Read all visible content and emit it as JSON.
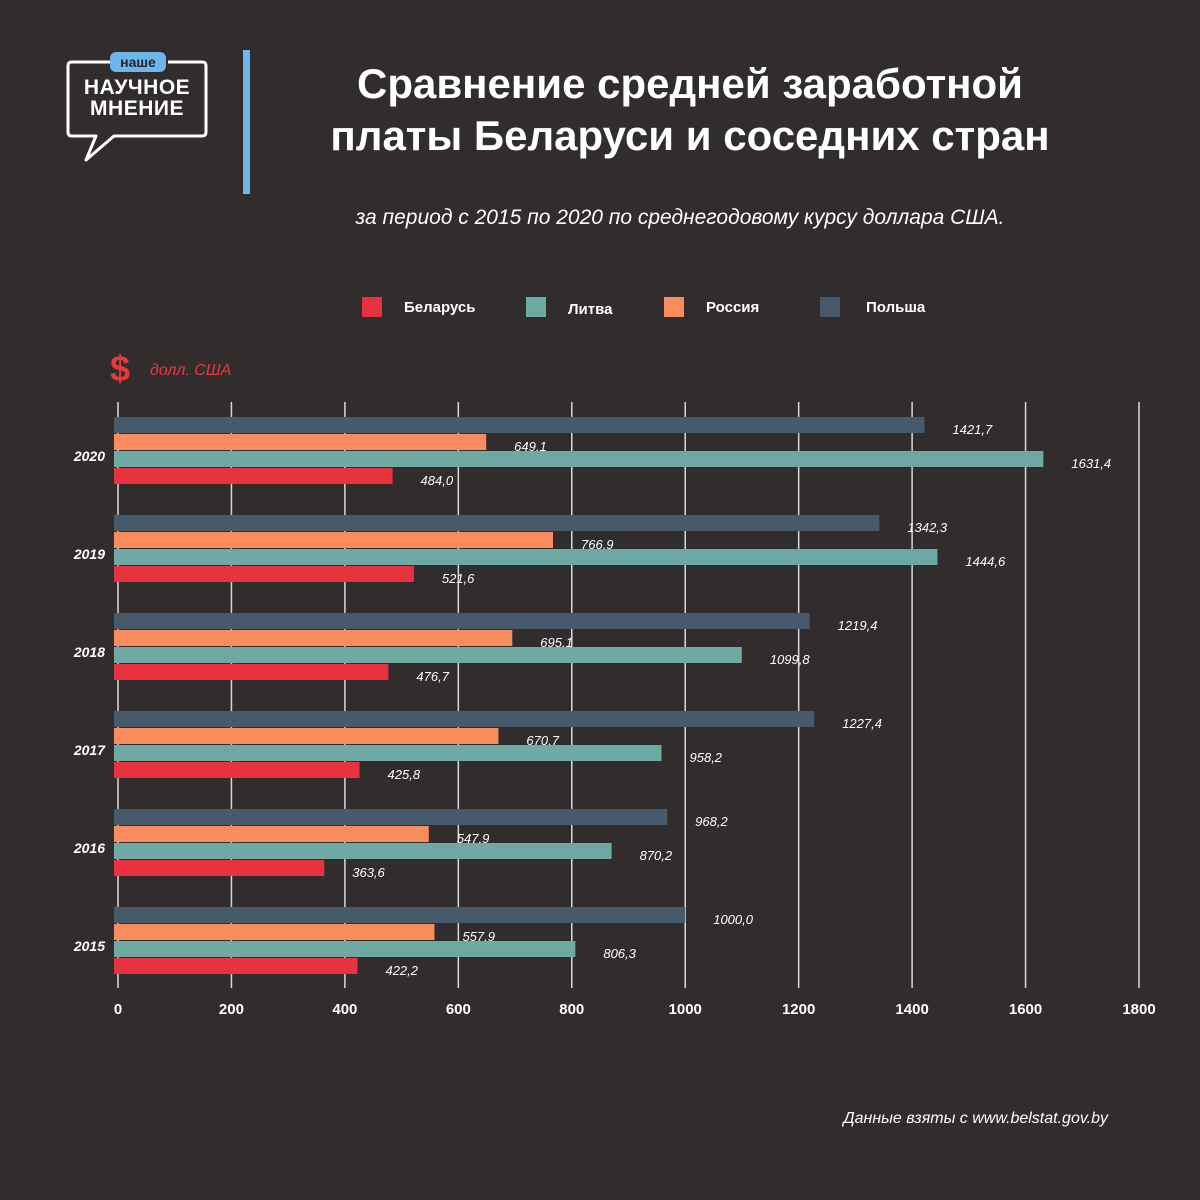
{
  "logo": {
    "badge": "наше",
    "line1": "НАУЧНОЕ",
    "line2": "МНЕНИЕ"
  },
  "title_line1": "Сравнение средней заработной",
  "title_line2": "платы Беларуси и соседних стран",
  "subtitle": "за период с 2015 по 2020 по среднегодовому курсу доллара США.",
  "unit_icon": "dollar-icon",
  "unit_symbol": "$",
  "unit_label": "долл. США",
  "source": "Данные взяты с www.belstat.gov.by",
  "colors": {
    "background": "#322d2d",
    "accent_blue": "#6cb6ec",
    "unit_red": "#e8393f"
  },
  "legend": [
    {
      "name": "Беларусь",
      "color": "#e8333f"
    },
    {
      "name": "Литва",
      "color": "#6ea9a4"
    },
    {
      "name": "Россия",
      "color": "#f98c5c"
    },
    {
      "name": "Польша",
      "color": "#465a6b"
    }
  ],
  "chart_data": {
    "type": "bar",
    "orientation": "horizontal",
    "categories": [
      "2020",
      "2019",
      "2018",
      "2017",
      "2016",
      "2015"
    ],
    "xlim": [
      0,
      1800
    ],
    "xticks": [
      "0",
      "200",
      "400",
      "600",
      "800",
      "1000",
      "1200",
      "1400",
      "1600",
      "1800"
    ],
    "grid": true,
    "series": [
      {
        "name": "Польша",
        "color": "#465a6b",
        "values": [
          1421.7,
          1342.3,
          1219.4,
          1227.4,
          968.2,
          1000.0
        ],
        "labels": [
          "1421,7",
          "1342,3",
          "1219,4",
          "1227,4",
          "968,2",
          "1000,0"
        ]
      },
      {
        "name": "Россия",
        "color": "#f98c5c",
        "values": [
          649.1,
          766.9,
          695.1,
          670.7,
          547.9,
          557.9
        ],
        "labels": [
          "649,1",
          "766,9",
          "695,1",
          "670,7",
          "547,9",
          "557,9"
        ]
      },
      {
        "name": "Литва",
        "color": "#6ea9a4",
        "values": [
          1631.4,
          1444.6,
          1099.8,
          958.2,
          870.2,
          806.3
        ],
        "labels": [
          "1631,4",
          "1444,6",
          "1099,8",
          "958,2",
          "870,2",
          "806,3"
        ]
      },
      {
        "name": "Беларусь",
        "color": "#e8333f",
        "values": [
          484.0,
          521.6,
          476.7,
          425.8,
          363.6,
          422.2
        ],
        "labels": [
          "484,0",
          "521,6",
          "476,7",
          "425,8",
          "363,6",
          "422,2"
        ]
      }
    ]
  }
}
